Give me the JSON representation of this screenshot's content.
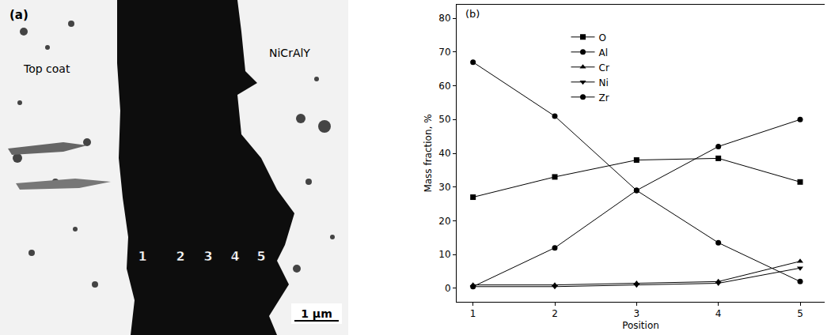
{
  "image_panel": {
    "panel_label": "(a)",
    "labels": [
      "Top coat",
      "NiCrAlY"
    ],
    "points": [
      "1",
      "2",
      "3",
      "4",
      "5"
    ],
    "scale_bar": "1 μm"
  },
  "chart_data": {
    "type": "line",
    "panel_label": "(b)",
    "x_label": "Position",
    "y_label": "Mass fraction, %",
    "x": [
      1,
      2,
      3,
      4,
      5
    ],
    "series": [
      {
        "name": "O",
        "color": "#000000",
        "marker": "square",
        "values": [
          27,
          33,
          38,
          38.5,
          31.5
        ]
      },
      {
        "name": "Al",
        "color": "#000000",
        "marker": "circle",
        "values": [
          0.5,
          12,
          29,
          42,
          50
        ]
      },
      {
        "name": "Cr",
        "color": "#000000",
        "marker": "triangle-up",
        "values": [
          1,
          1,
          1.5,
          2,
          8
        ]
      },
      {
        "name": "Ni",
        "color": "#000000",
        "marker": "triangle-down",
        "values": [
          0.5,
          0.5,
          1,
          1.5,
          6
        ]
      },
      {
        "name": "Zr",
        "color": "#000000",
        "marker": "circle",
        "values": [
          67,
          51,
          29,
          13.5,
          2
        ]
      }
    ],
    "xlim": [
      0.8,
      5.3
    ],
    "xticks": [
      1,
      2,
      3,
      4,
      5
    ],
    "ylim": [
      -4,
      84
    ],
    "yticks": [
      0,
      10,
      20,
      30,
      40,
      50,
      60,
      70,
      80
    ],
    "grid": false,
    "legend": "top"
  }
}
